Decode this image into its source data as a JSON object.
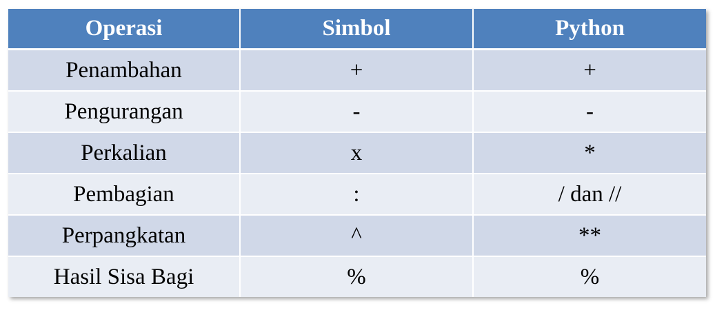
{
  "table": {
    "headers": [
      "Operasi",
      "Simbol",
      "Python"
    ],
    "rows": [
      [
        "Penambahan",
        "+",
        "+"
      ],
      [
        "Pengurangan",
        "-",
        "-"
      ],
      [
        "Perkalian",
        "x",
        "*"
      ],
      [
        "Pembagian",
        ":",
        "/ dan //"
      ],
      [
        "Perpangkatan",
        "^",
        "**"
      ],
      [
        "Hasil Sisa Bagi",
        "%",
        "%"
      ]
    ]
  },
  "colors": {
    "header_bg": "#4f81bd",
    "row_odd_bg": "#d0d8e8",
    "row_even_bg": "#e9edf4"
  }
}
